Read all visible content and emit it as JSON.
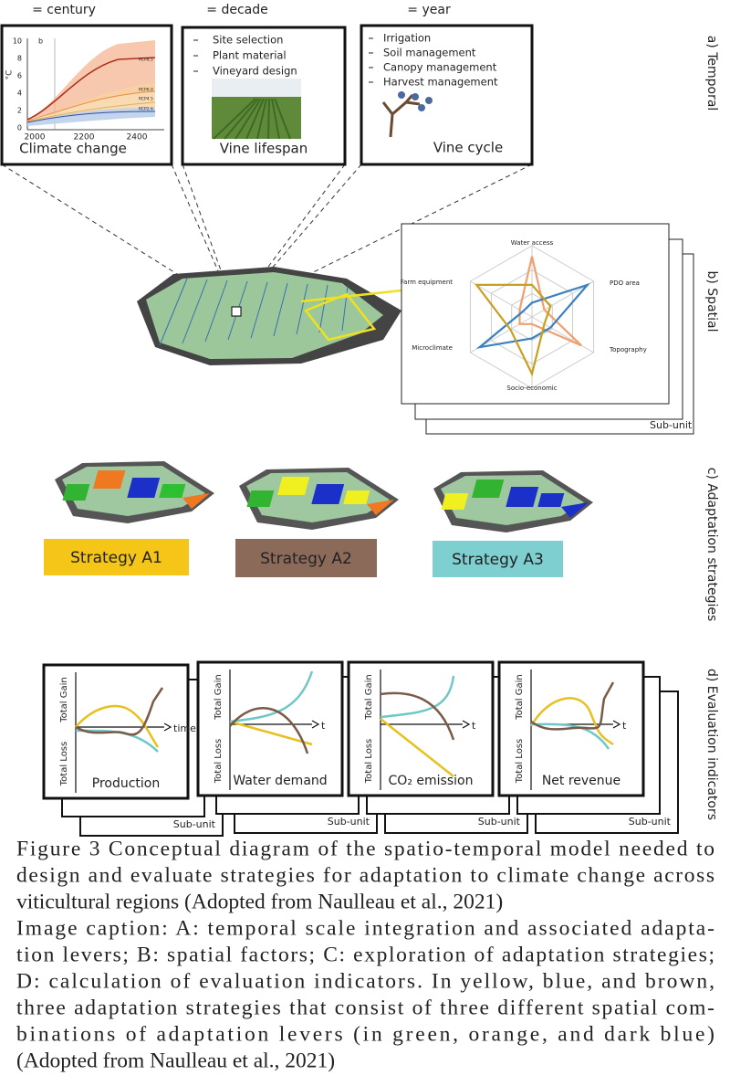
{
  "header": {
    "scales": [
      "= century",
      "= decade",
      "= year"
    ]
  },
  "temporal": {
    "climate": {
      "title": "Climate change",
      "y_unit": "°C",
      "panel_label": "b",
      "yticks": [
        "10",
        "8",
        "6",
        "4",
        "2",
        "0"
      ],
      "xticks": [
        "2000",
        "2200",
        "2400"
      ],
      "scenarios": [
        "RCP8.5",
        "RCP6.0",
        "RCP4.5",
        "RCP2.6"
      ]
    },
    "decade": {
      "title": "Vine lifespan",
      "items": [
        "Site selection",
        "Plant material",
        "Vineyard design"
      ]
    },
    "year": {
      "title": "Vine cycle",
      "items": [
        "Irrigation",
        "Soil management",
        "Canopy management",
        "Harvest management"
      ]
    }
  },
  "side_labels": [
    "a) Temporal",
    "b) Spatial",
    "c) Adaptation strategies",
    "d) Evaluation indicators"
  ],
  "spatial": {
    "factors": [
      "Water access",
      "PDO area",
      "Topography",
      "Socio-economic",
      "Microclimate",
      "Farm equipment"
    ],
    "sub_unit": "Sub-unit"
  },
  "strategies": [
    "Strategy A1",
    "Strategy A2",
    "Strategy A3"
  ],
  "evaluation": {
    "gain": "Total Gain",
    "loss": "Total Loss",
    "sub_unit": "Sub-unit",
    "panels": [
      {
        "title": "Production",
        "x_label": "time"
      },
      {
        "title": "Water demand",
        "x_label": "t"
      },
      {
        "title": "CO₂ emission",
        "x_label": "t"
      },
      {
        "title": "Net revenue",
        "x_label": "t"
      }
    ]
  },
  "caption": {
    "lines": [
      "Figure 3 Conceptual diagram of the spatio-temporal model needed to",
      "design and evaluate strategies for adaptation to climate change across",
      "viticultural regions (Adopted from Naulleau et al., 2021)",
      "Image caption: A: temporal scale integration and associated adapta-",
      "tion levers; B: spatial factors; C: exploration of adaptation strategies;",
      "D: calculation of evaluation indicators. In yellow, blue, and brown,",
      "three adaptation strategies that consist of three different spatial com-",
      "binations of adaptation levers (in green, orange, and dark blue)",
      "(Adopted from Naulleau et al., 2021)"
    ]
  }
}
